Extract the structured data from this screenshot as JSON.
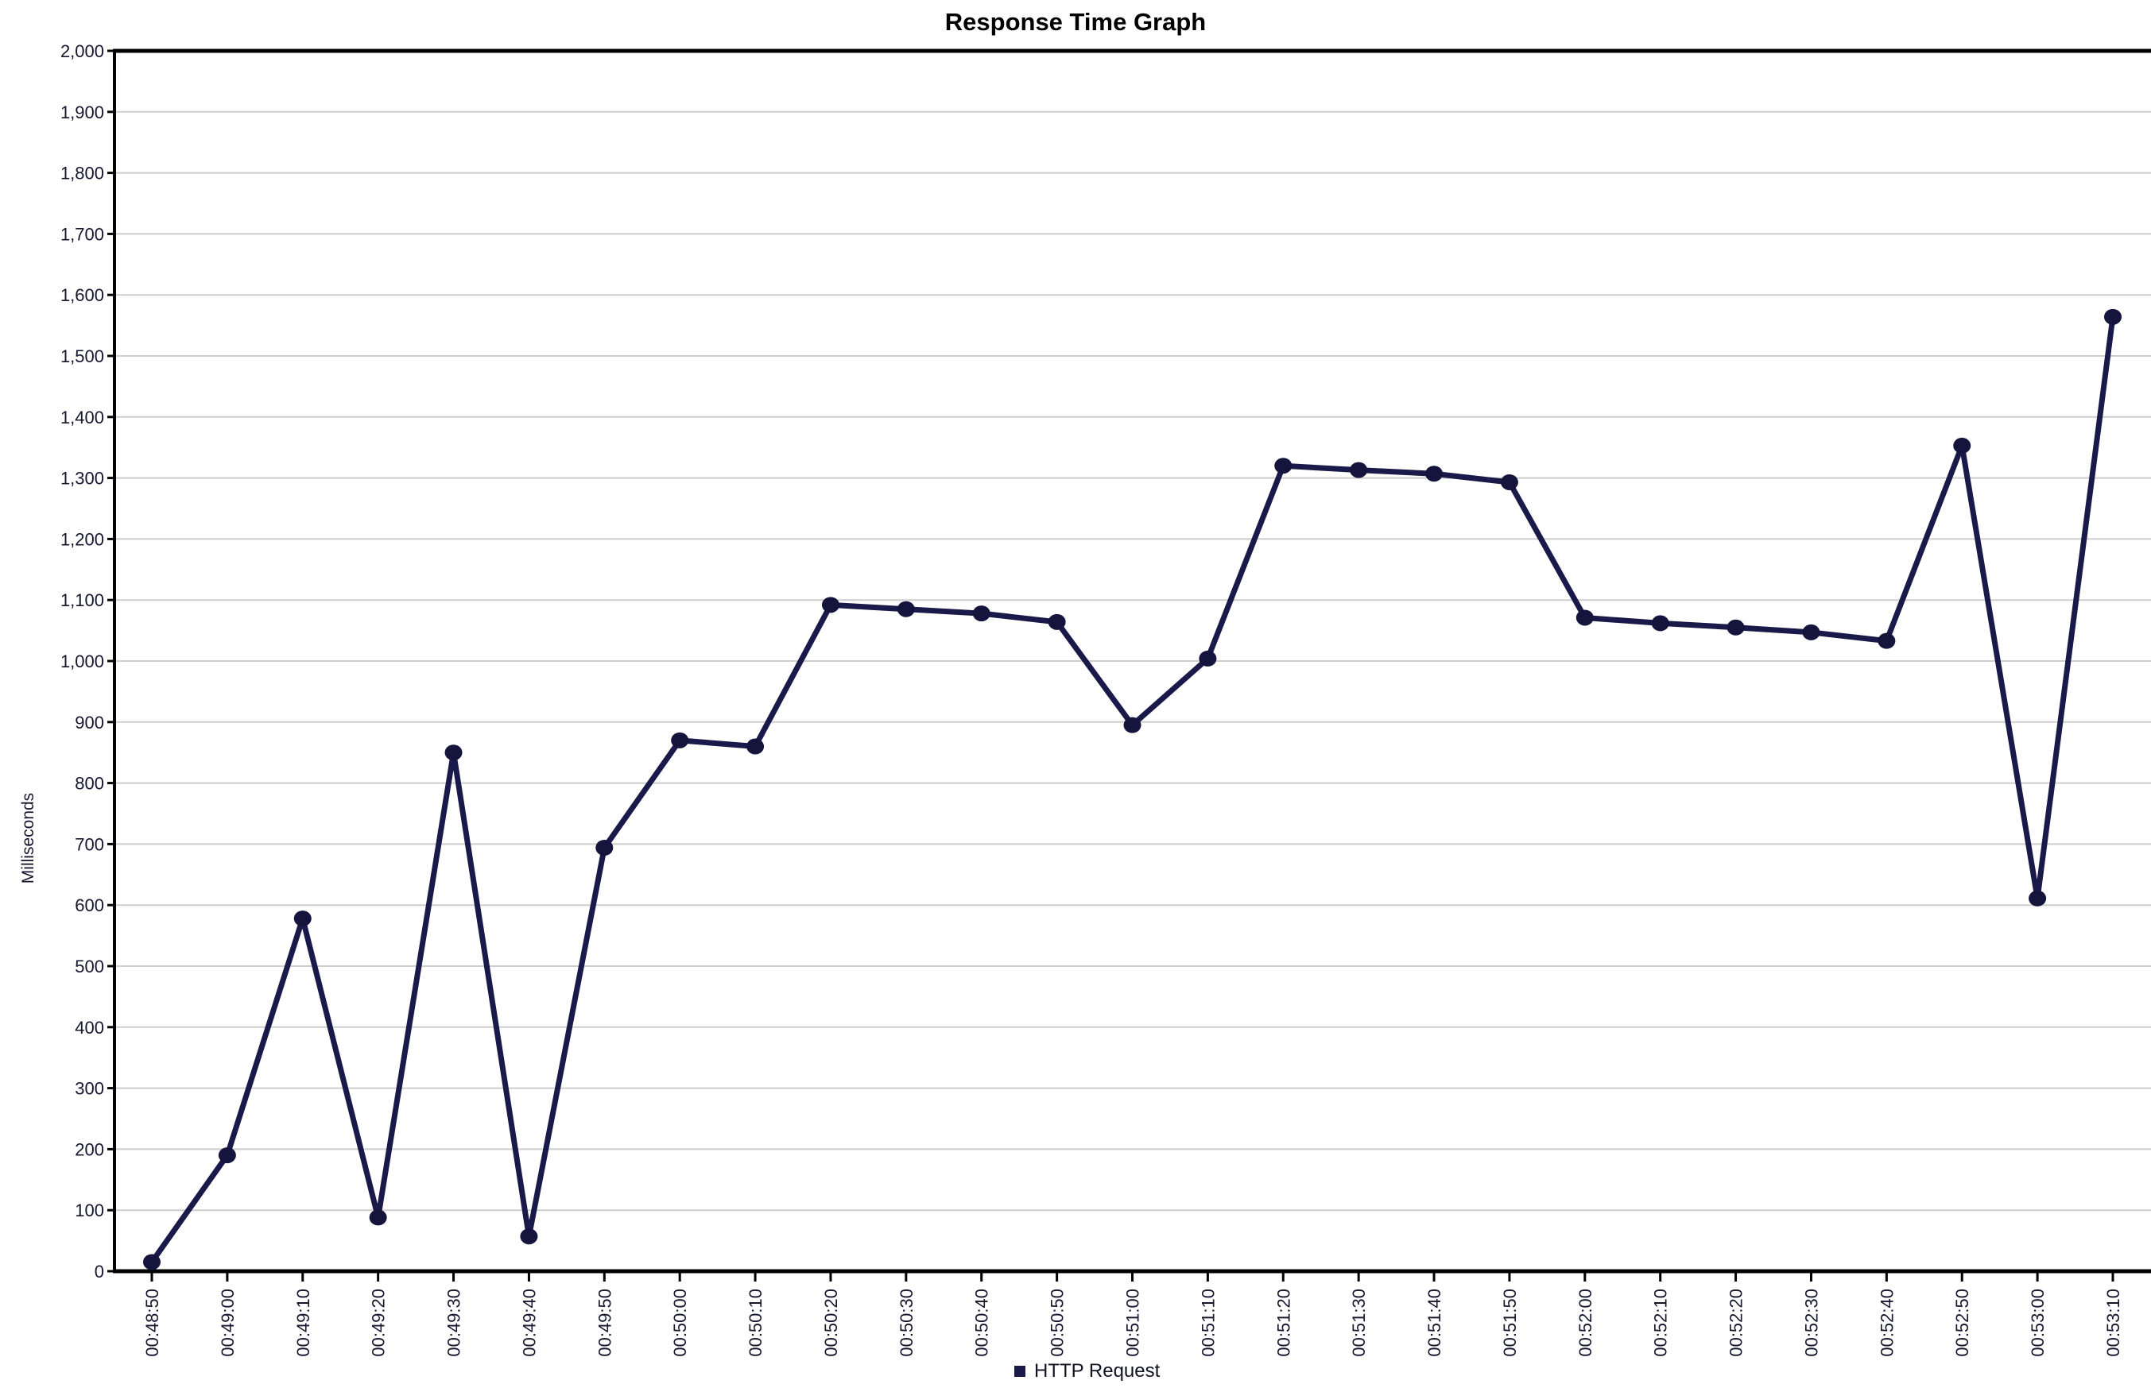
{
  "title": "Response Time Graph",
  "y_axis_label": "Milliseconds",
  "legend": {
    "label": "HTTP Request"
  },
  "colors": {
    "series": "#1a1a4a",
    "marker": "#14143c",
    "grid": "#cdcdcd",
    "axis": "#000000",
    "label_text": "#16162e",
    "background": "#ffffff"
  },
  "chart_data": {
    "type": "line",
    "title": "Response Time Graph",
    "xlabel": "",
    "ylabel": "Milliseconds",
    "x": [
      "00:48:50",
      "00:49:00",
      "00:49:10",
      "00:49:20",
      "00:49:30",
      "00:49:40",
      "00:49:50",
      "00:50:00",
      "00:50:10",
      "00:50:20",
      "00:50:30",
      "00:50:40",
      "00:50:50",
      "00:51:00",
      "00:51:10",
      "00:51:20",
      "00:51:30",
      "00:51:40",
      "00:51:50",
      "00:52:00",
      "00:52:10",
      "00:52:20",
      "00:52:30",
      "00:52:40",
      "00:52:50",
      "00:53:00",
      "00:53:10"
    ],
    "series": [
      {
        "name": "HTTP Request",
        "color": "#1a1a4a",
        "values": [
          15,
          190,
          578,
          88,
          850,
          57,
          694,
          870,
          860,
          1092,
          1085,
          1078,
          1064,
          895,
          1004,
          1320,
          1313,
          1307,
          1293,
          1071,
          1062,
          1055,
          1047,
          1033,
          1353,
          611,
          1564
        ]
      }
    ],
    "ylim": [
      0,
      2000
    ],
    "ytick_step": 100,
    "ytick_format": "thousands-comma",
    "x_tick_rotation": -90,
    "grid": true,
    "legend_position": "bottom"
  }
}
